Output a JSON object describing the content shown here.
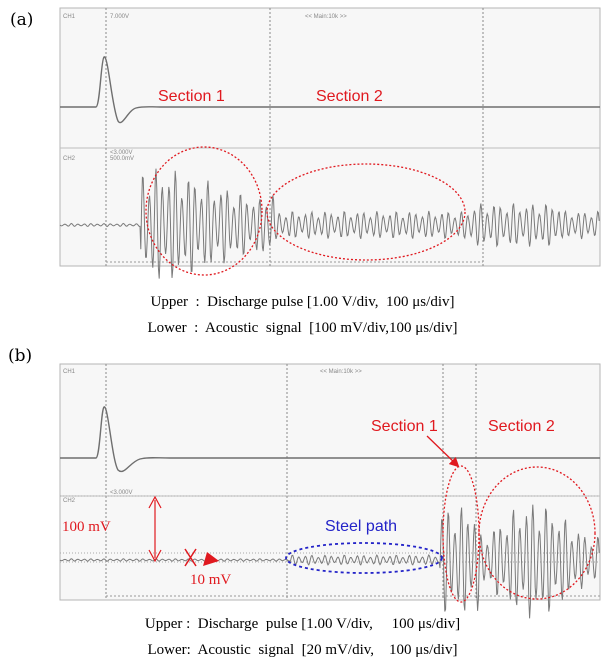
{
  "panel_a": {
    "label": "(a)",
    "ch1_label": "CH1",
    "ch2_label": "CH2",
    "ch1_scale": "7.000V",
    "ch2_scale": "<3.000V",
    "ch2_scale2": "500.0mV",
    "timebase": "<< Main:10k >>",
    "section1": "Section 1",
    "section2": "Section 2",
    "caption_upper": "Upper  :  Discharge pulse [1.00 V/div,  100 μs/div]",
    "caption_lower": "Lower  :  Acoustic  signal  [100 mV/div,100 μs/div]"
  },
  "panel_b": {
    "label": "(b)",
    "ch1_label": "CH1",
    "ch2_label": "CH2",
    "ch2_scale": "<3.000V",
    "timebase": "<< Main:10k >>",
    "section1": "Section 1",
    "section2": "Section 2",
    "steel_path": "Steel path",
    "amp_100mv": "100 mV",
    "amp_10mv": "10 mV",
    "caption_upper": "Upper :  Discharge  pulse [1.00 V/div,     100 μs/div]",
    "caption_lower": "Lower:  Acoustic  signal  [20 mV/div,    100 μs/div]"
  },
  "colors": {
    "annotation_red": "#e0191f",
    "annotation_blue": "#2323c8",
    "trace_gray": "#777777",
    "grid_gray": "#9a9a9a"
  }
}
